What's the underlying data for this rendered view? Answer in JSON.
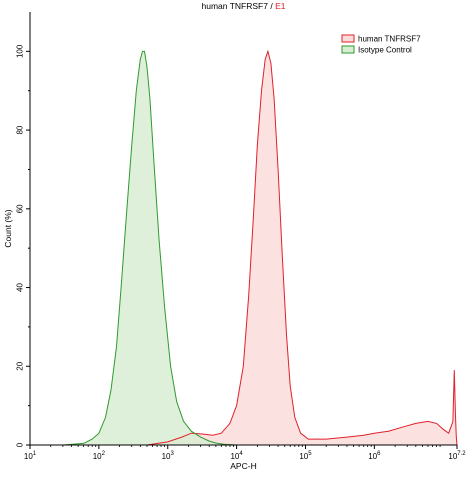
{
  "chart_data": {
    "type": "area",
    "title_main": "human TNFRSF7",
    "title_separator": " / ",
    "title_gate": "E1",
    "xlabel": "APC-H",
    "ylabel": "Count (%)",
    "x_scale": "log10",
    "xlim": [
      10,
      15848932
    ],
    "ylim": [
      0,
      110
    ],
    "grid": false,
    "legend_position": "top-right",
    "x_ticks": [
      {
        "value": 10,
        "base": "10",
        "exp": "1"
      },
      {
        "value": 100,
        "base": "10",
        "exp": "2"
      },
      {
        "value": 1000,
        "base": "10",
        "exp": "3"
      },
      {
        "value": 10000,
        "base": "10",
        "exp": "4"
      },
      {
        "value": 100000,
        "base": "10",
        "exp": "5"
      },
      {
        "value": 1000000,
        "base": "10",
        "exp": "6"
      },
      {
        "value": 15848932,
        "base": "10",
        "exp": "7.2"
      }
    ],
    "y_ticks": [
      0,
      20,
      40,
      60,
      80,
      100
    ],
    "colors": {
      "title_gate": "#e0202a",
      "axes": "#000000"
    },
    "series": [
      {
        "name": "Isotype Control",
        "color": "#2e9a2e",
        "fill": "#d8edd4",
        "points": [
          [
            10,
            0
          ],
          [
            30,
            0
          ],
          [
            60,
            0.4
          ],
          [
            80,
            1.5
          ],
          [
            100,
            3
          ],
          [
            125,
            7
          ],
          [
            150,
            14
          ],
          [
            180,
            25
          ],
          [
            210,
            40
          ],
          [
            250,
            58
          ],
          [
            300,
            76
          ],
          [
            350,
            90
          ],
          [
            400,
            98
          ],
          [
            430,
            100
          ],
          [
            460,
            100
          ],
          [
            500,
            96
          ],
          [
            550,
            88
          ],
          [
            630,
            72
          ],
          [
            750,
            52
          ],
          [
            900,
            35
          ],
          [
            1100,
            20
          ],
          [
            1350,
            11
          ],
          [
            1700,
            6
          ],
          [
            2200,
            3.5
          ],
          [
            3000,
            2
          ],
          [
            4000,
            1
          ],
          [
            5000,
            0.5
          ],
          [
            6500,
            0.2
          ],
          [
            10000,
            0
          ],
          [
            15848932,
            0
          ]
        ]
      },
      {
        "name": "human TNFRSF7",
        "color": "#e0202a",
        "fill": "#fbdcdc",
        "points": [
          [
            10,
            0
          ],
          [
            500,
            0
          ],
          [
            1000,
            0.8
          ],
          [
            1600,
            2
          ],
          [
            2200,
            3
          ],
          [
            3200,
            2.8
          ],
          [
            4500,
            2.5
          ],
          [
            6000,
            3
          ],
          [
            8000,
            5.5
          ],
          [
            10000,
            10
          ],
          [
            12500,
            20
          ],
          [
            15000,
            38
          ],
          [
            17500,
            58
          ],
          [
            20000,
            76
          ],
          [
            23000,
            90
          ],
          [
            26000,
            98
          ],
          [
            28500,
            100
          ],
          [
            31500,
            97
          ],
          [
            35000,
            88
          ],
          [
            40000,
            70
          ],
          [
            46000,
            48
          ],
          [
            53000,
            28
          ],
          [
            60000,
            15
          ],
          [
            70000,
            7
          ],
          [
            85000,
            3
          ],
          [
            110000,
            1.5
          ],
          [
            200000,
            1.5
          ],
          [
            400000,
            2
          ],
          [
            700000,
            2.5
          ],
          [
            1000000,
            3
          ],
          [
            1600000,
            3.5
          ],
          [
            2500000,
            4.5
          ],
          [
            4000000,
            5.5
          ],
          [
            6000000,
            6
          ],
          [
            8000000,
            5.5
          ],
          [
            10000000,
            4
          ],
          [
            12000000,
            3
          ],
          [
            13800000,
            6
          ],
          [
            14500000,
            19
          ],
          [
            15000000,
            8
          ],
          [
            15500000,
            2
          ],
          [
            15848932,
            0
          ]
        ]
      }
    ],
    "legend": [
      {
        "label": "human TNFRSF7",
        "color": "#e0202a",
        "fill": "#fbdcdc"
      },
      {
        "label": "Isotype Control",
        "color": "#2e9a2e",
        "fill": "#d8edd4"
      }
    ]
  }
}
